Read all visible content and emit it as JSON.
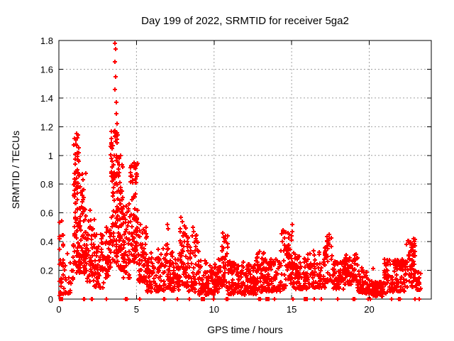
{
  "title": "Day 199 of 2022, SRMTID for receiver 5ga2",
  "xlabel": "GPS time / hours",
  "ylabel": "SRMTID / TECUs",
  "colors": {
    "marker": "#ff0000",
    "grid": "#a0a0a0",
    "axis": "#000000",
    "text": "#000000",
    "background": "#ffffff"
  },
  "chart_data": {
    "type": "scatter",
    "title": "Day 199 of 2022, SRMTID for receiver 5ga2",
    "xlabel": "GPS time / hours",
    "ylabel": "SRMTID / TECUs",
    "xlim": [
      0,
      24
    ],
    "ylim": [
      0,
      1.8
    ],
    "xtick_values": [
      0,
      5,
      10,
      15,
      20
    ],
    "xtick_labels": [
      "0",
      "5",
      "10",
      "15",
      "20"
    ],
    "ytick_values": [
      0,
      0.2,
      0.4,
      0.6,
      0.8,
      1.0,
      1.2,
      1.4,
      1.6,
      1.8
    ],
    "ytick_labels": [
      "0",
      "0.2",
      "0.4",
      "0.6",
      "0.8",
      "1",
      "1.2",
      "1.4",
      "1.6",
      "1.8"
    ],
    "grid": true,
    "legend": "none",
    "marker": "plus",
    "marker_color": "#ff0000",
    "marker_size_px": 7,
    "seed": 199,
    "density_bands": [
      {
        "x0": 0.02,
        "x1": 0.3,
        "n": 28,
        "y0": 0.02,
        "y1": 0.58,
        "bias": 1.2
      },
      {
        "x0": 0.3,
        "x1": 0.95,
        "n": 26,
        "y0": 0.04,
        "y1": 0.4,
        "bias": 1.6
      },
      {
        "x0": 0.95,
        "x1": 1.3,
        "n": 80,
        "y0": 0.18,
        "y1": 1.14,
        "bias": 1.35
      },
      {
        "x0": 1.3,
        "x1": 1.75,
        "n": 70,
        "y0": 0.18,
        "y1": 0.88,
        "bias": 1.5
      },
      {
        "x0": 1.75,
        "x1": 2.3,
        "n": 55,
        "y0": 0.12,
        "y1": 0.62,
        "bias": 1.5
      },
      {
        "x0": 2.3,
        "x1": 2.95,
        "n": 55,
        "y0": 0.08,
        "y1": 0.45,
        "bias": 1.4
      },
      {
        "x0": 2.95,
        "x1": 3.35,
        "n": 40,
        "y0": 0.15,
        "y1": 0.52,
        "bias": 1.3
      },
      {
        "x0": 3.35,
        "x1": 3.78,
        "n": 85,
        "y0": 0.25,
        "y1": 1.18,
        "bias": 1.15
      },
      {
        "x0": 3.78,
        "x1": 4.15,
        "n": 70,
        "y0": 0.2,
        "y1": 1.0,
        "bias": 1.3
      },
      {
        "x0": 4.15,
        "x1": 4.6,
        "n": 55,
        "y0": 0.15,
        "y1": 0.68,
        "bias": 1.4
      },
      {
        "x0": 4.6,
        "x1": 5.1,
        "n": 75,
        "y0": 0.25,
        "y1": 0.95,
        "bias": 1.25
      },
      {
        "x0": 5.1,
        "x1": 5.65,
        "n": 55,
        "y0": 0.12,
        "y1": 0.55,
        "bias": 1.45
      },
      {
        "x0": 5.65,
        "x1": 6.4,
        "n": 60,
        "y0": 0.05,
        "y1": 0.33,
        "bias": 1.5
      },
      {
        "x0": 6.4,
        "x1": 7.2,
        "n": 65,
        "y0": 0.06,
        "y1": 0.38,
        "bias": 1.5
      },
      {
        "x0": 7.2,
        "x1": 7.8,
        "n": 55,
        "y0": 0.06,
        "y1": 0.34,
        "bias": 1.5
      },
      {
        "x0": 7.8,
        "x1": 8.3,
        "n": 50,
        "y0": 0.08,
        "y1": 0.5,
        "bias": 1.35
      },
      {
        "x0": 8.3,
        "x1": 9.0,
        "n": 60,
        "y0": 0.05,
        "y1": 0.45,
        "bias": 1.5
      },
      {
        "x0": 9.0,
        "x1": 10.0,
        "n": 85,
        "y0": 0.03,
        "y1": 0.27,
        "bias": 1.4
      },
      {
        "x0": 10.0,
        "x1": 10.45,
        "n": 40,
        "y0": 0.05,
        "y1": 0.3,
        "bias": 1.4
      },
      {
        "x0": 10.45,
        "x1": 10.9,
        "n": 40,
        "y0": 0.07,
        "y1": 0.44,
        "bias": 1.35
      },
      {
        "x0": 10.9,
        "x1": 12.0,
        "n": 95,
        "y0": 0.03,
        "y1": 0.26,
        "bias": 1.4
      },
      {
        "x0": 12.0,
        "x1": 12.7,
        "n": 70,
        "y0": 0.03,
        "y1": 0.25,
        "bias": 1.4
      },
      {
        "x0": 12.7,
        "x1": 13.3,
        "n": 55,
        "y0": 0.05,
        "y1": 0.33,
        "bias": 1.4
      },
      {
        "x0": 13.3,
        "x1": 14.3,
        "n": 85,
        "y0": 0.05,
        "y1": 0.28,
        "bias": 1.4
      },
      {
        "x0": 14.3,
        "x1": 15.25,
        "n": 80,
        "y0": 0.07,
        "y1": 0.48,
        "bias": 1.3
      },
      {
        "x0": 15.25,
        "x1": 16.2,
        "n": 75,
        "y0": 0.07,
        "y1": 0.32,
        "bias": 1.4
      },
      {
        "x0": 16.2,
        "x1": 17.15,
        "n": 70,
        "y0": 0.08,
        "y1": 0.34,
        "bias": 1.4
      },
      {
        "x0": 17.15,
        "x1": 17.6,
        "n": 32,
        "y0": 0.1,
        "y1": 0.44,
        "bias": 1.15
      },
      {
        "x0": 17.6,
        "x1": 18.4,
        "n": 65,
        "y0": 0.07,
        "y1": 0.28,
        "bias": 1.4
      },
      {
        "x0": 18.4,
        "x1": 19.25,
        "n": 70,
        "y0": 0.1,
        "y1": 0.32,
        "bias": 1.3
      },
      {
        "x0": 19.25,
        "x1": 20.25,
        "n": 70,
        "y0": 0.04,
        "y1": 0.22,
        "bias": 1.4
      },
      {
        "x0": 20.25,
        "x1": 20.95,
        "n": 70,
        "y0": 0.02,
        "y1": 0.12,
        "bias": 1.25
      },
      {
        "x0": 20.95,
        "x1": 21.35,
        "n": 35,
        "y0": 0.04,
        "y1": 0.28,
        "bias": 1.3
      },
      {
        "x0": 21.35,
        "x1": 22.4,
        "n": 85,
        "y0": 0.05,
        "y1": 0.28,
        "bias": 1.3
      },
      {
        "x0": 22.4,
        "x1": 23.05,
        "n": 60,
        "y0": 0.08,
        "y1": 0.42,
        "bias": 1.15
      },
      {
        "x0": 23.05,
        "x1": 23.35,
        "n": 16,
        "y0": 0.06,
        "y1": 0.22,
        "bias": 1.3
      }
    ],
    "peak_points": [
      [
        3.62,
        1.78
      ],
      [
        3.64,
        1.74
      ],
      [
        3.63,
        1.65
      ],
      [
        3.66,
        1.55
      ],
      [
        3.6,
        1.46
      ],
      [
        3.7,
        1.37
      ],
      [
        3.68,
        1.29
      ],
      [
        3.74,
        1.22
      ],
      [
        1.12,
        1.15
      ],
      [
        1.1,
        1.11
      ],
      [
        1.16,
        1.07
      ],
      [
        1.2,
        1.02
      ],
      [
        4.85,
        0.95
      ],
      [
        4.92,
        0.91
      ],
      [
        5.0,
        0.87
      ],
      [
        7.0,
        0.52
      ],
      [
        7.03,
        0.49
      ],
      [
        7.88,
        0.57
      ],
      [
        7.95,
        0.54
      ],
      [
        8.1,
        0.51
      ],
      [
        8.65,
        0.5
      ],
      [
        8.7,
        0.47
      ],
      [
        10.55,
        0.46
      ],
      [
        10.62,
        0.43
      ],
      [
        15.02,
        0.52
      ],
      [
        15.05,
        0.47
      ],
      [
        14.98,
        0.44
      ],
      [
        17.4,
        0.45
      ],
      [
        17.42,
        0.42
      ],
      [
        17.38,
        0.39
      ],
      [
        22.86,
        0.42
      ],
      [
        22.9,
        0.4
      ],
      [
        22.82,
        0.37
      ]
    ],
    "zero_square_x": [
      0.12,
      9.3,
      13.45,
      15.93
    ],
    "zero_plus_x": [
      1.6,
      1.66,
      2.1,
      2.16,
      3.05,
      4.3,
      4.38,
      5.2,
      6.75,
      6.83,
      7.65,
      8.4,
      9.95,
      10.8,
      10.88,
      12.9,
      12.98,
      13.9,
      15.1,
      16.45,
      16.9,
      17.95,
      18.95,
      19.05,
      19.95,
      20.05,
      21.45,
      21.9,
      22.0,
      22.95,
      23.2
    ]
  }
}
